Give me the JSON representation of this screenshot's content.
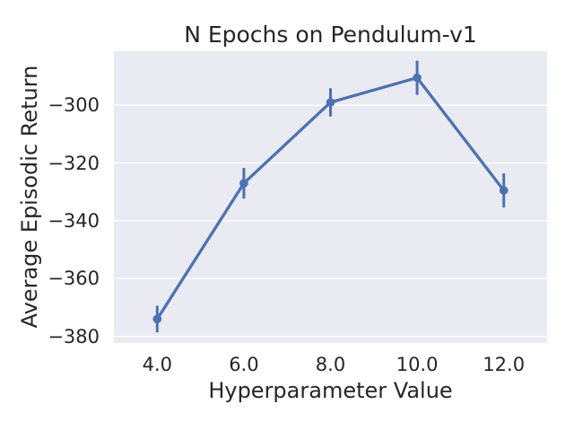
{
  "figure": {
    "background_color": "#ffffff",
    "text_color": "#262626"
  },
  "chart_data": {
    "type": "line",
    "title": "N Epochs on Pendulum-v1",
    "xlabel": "Hyperparameter Value",
    "ylabel": "Average Episodic Return",
    "x": [
      4.0,
      6.0,
      8.0,
      10.0,
      12.0
    ],
    "y": [
      -374.0,
      -327.0,
      -299.0,
      -290.5,
      -329.5
    ],
    "yerr": [
      4.6,
      5.3,
      4.9,
      5.9,
      5.9
    ],
    "series_name": "N Epochs",
    "xtick_labels": [
      "4.0",
      "6.0",
      "8.0",
      "10.0",
      "12.0"
    ],
    "ytick_values": [
      -300,
      -320,
      -340,
      -360,
      -380
    ],
    "ytick_labels": [
      "−300",
      "−320",
      "−340",
      "−360",
      "−380"
    ],
    "xlim": [
      3.0,
      13.0
    ],
    "ylim": [
      -382.3,
      -281.3
    ],
    "grid": "horizontal-only",
    "legend": "none",
    "line_color": "#4c72b0",
    "marker": "circle",
    "error_bar_caps": false,
    "plot_bg_color": "#eaeaf2",
    "grid_color": "#ffffff"
  }
}
